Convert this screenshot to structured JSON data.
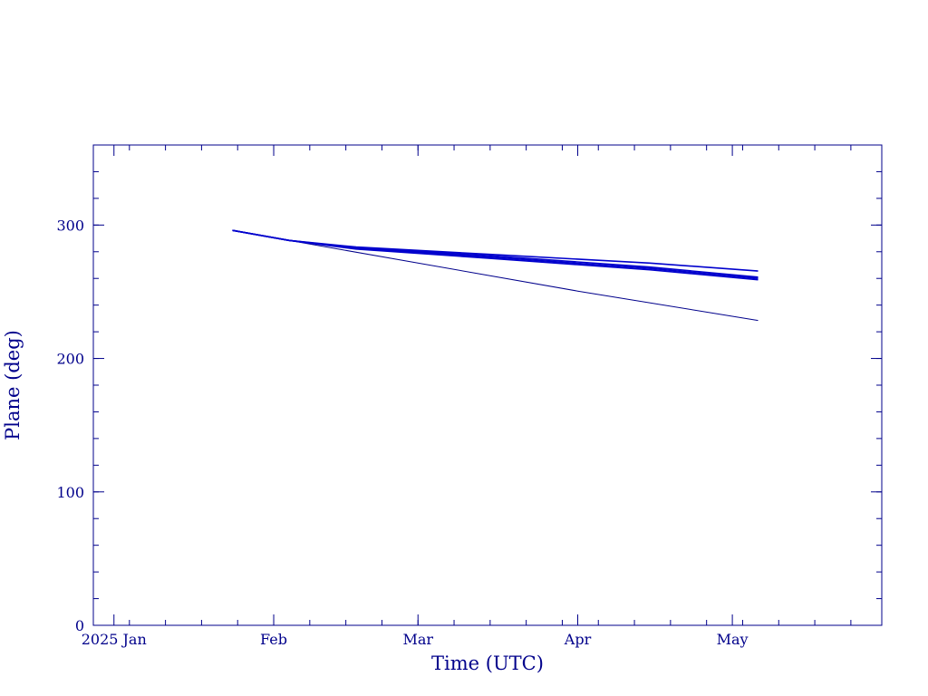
{
  "colors": {
    "axis": "#00008b",
    "series": "#0000cd",
    "background": "#ffffff"
  },
  "chart_data": {
    "type": "line",
    "xlabel": "Time (UTC)",
    "ylabel": "Plane (deg)",
    "x_axis": {
      "type": "date",
      "range": [
        "2024-12-28",
        "2025-05-30"
      ],
      "tick_labels": [
        {
          "date": "2025-01-01",
          "label": "2025 Jan"
        },
        {
          "date": "2025-02-01",
          "label": "Feb"
        },
        {
          "date": "2025-03-01",
          "label": "Mar"
        },
        {
          "date": "2025-04-01",
          "label": "Apr"
        },
        {
          "date": "2025-05-01",
          "label": "May"
        }
      ]
    },
    "y_axis": {
      "range": [
        0,
        360
      ],
      "ticks": [
        0,
        100,
        200,
        300
      ],
      "tick_labels": [
        "0",
        "100",
        "200",
        "300"
      ]
    },
    "grid": false,
    "series": [
      {
        "points": [
          {
            "x": "2025-01-24",
            "y": 296
          },
          {
            "x": "2025-02-04",
            "y": 288.5
          },
          {
            "x": "2025-03-01",
            "y": 271.5
          },
          {
            "x": "2025-04-01",
            "y": 250.5
          },
          {
            "x": "2025-05-06",
            "y": 228.5
          }
        ]
      },
      {
        "points": [
          {
            "x": "2025-01-24",
            "y": 296
          },
          {
            "x": "2025-02-04",
            "y": 288.5
          },
          {
            "x": "2025-02-17",
            "y": 283.5
          },
          {
            "x": "2025-03-15",
            "y": 278
          },
          {
            "x": "2025-04-15",
            "y": 271.5
          },
          {
            "x": "2025-05-06",
            "y": 265.5
          }
        ]
      },
      {
        "points": [
          {
            "x": "2025-01-24",
            "y": 296
          },
          {
            "x": "2025-02-04",
            "y": 288.5
          },
          {
            "x": "2025-02-17",
            "y": 283
          },
          {
            "x": "2025-03-15",
            "y": 277
          },
          {
            "x": "2025-04-15",
            "y": 268.5
          },
          {
            "x": "2025-05-06",
            "y": 261
          }
        ]
      },
      {
        "points": [
          {
            "x": "2025-01-24",
            "y": 296
          },
          {
            "x": "2025-02-04",
            "y": 288.5
          },
          {
            "x": "2025-02-17",
            "y": 282.5
          },
          {
            "x": "2025-03-15",
            "y": 276
          },
          {
            "x": "2025-04-15",
            "y": 267.5
          },
          {
            "x": "2025-05-06",
            "y": 260
          }
        ]
      },
      {
        "points": [
          {
            "x": "2025-01-24",
            "y": 296
          },
          {
            "x": "2025-02-04",
            "y": 288.5
          },
          {
            "x": "2025-02-17",
            "y": 282
          },
          {
            "x": "2025-03-15",
            "y": 275
          },
          {
            "x": "2025-04-15",
            "y": 266.5
          },
          {
            "x": "2025-05-06",
            "y": 259
          }
        ]
      }
    ]
  }
}
